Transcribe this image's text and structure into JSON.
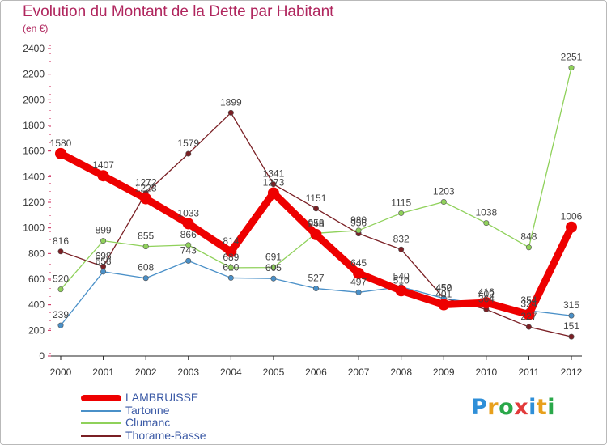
{
  "header": {
    "title": "Evolution du Montant de la Dette par Habitant",
    "subtitle": "(en €)"
  },
  "logo": {
    "text": "Proxiti",
    "letter_colors": [
      "#2f8fd8",
      "#e8a01c",
      "#2aa84a",
      "#e23a3a",
      "#2f8fd8",
      "#e8a01c",
      "#2aa84a"
    ]
  },
  "chart_data": {
    "type": "line",
    "x": [
      "2000",
      "2001",
      "2002",
      "2003",
      "2004",
      "2005",
      "2006",
      "2007",
      "2008",
      "2009",
      "2010",
      "2011",
      "2012"
    ],
    "ylim": [
      0,
      2400
    ],
    "yticks": [
      "0",
      "200",
      "400",
      "600",
      "800",
      "1000",
      "1200",
      "1400",
      "1600",
      "1800",
      "2000",
      "2200",
      "2400"
    ],
    "grid": false,
    "legend_position": "bottom-left",
    "series": [
      {
        "name": "LAMBRUISSE",
        "color": "#ee0000",
        "values": [
          1580,
          1407,
          1228,
          1033,
          814,
          1273,
          948,
          645,
          510,
          401,
          416,
          324,
          1006
        ],
        "labels": [
          "1580",
          "1407",
          "1228",
          "1033",
          "814",
          "1273",
          "948",
          "645",
          "510",
          "401",
          "416",
          "324",
          "1006"
        ]
      },
      {
        "name": "Tartonne",
        "color": "#4a90c8",
        "values": [
          239,
          658,
          608,
          743,
          610,
          605,
          527,
          497,
          540,
          450,
          402,
          354,
          315
        ],
        "labels": [
          "239",
          "658",
          "608",
          "743",
          "610",
          "605",
          "527",
          "497",
          "540",
          "450",
          "402",
          "354",
          "315"
        ]
      },
      {
        "name": "Clumanc",
        "color": "#8fd15a",
        "values": [
          520,
          899,
          855,
          866,
          689,
          691,
          958,
          980,
          1115,
          1203,
          1038,
          848,
          2251
        ],
        "labels": [
          "520",
          "899",
          "855",
          "866",
          "689",
          "691",
          "958",
          "980",
          "1115",
          "1203",
          "1038",
          "848",
          "2251"
        ]
      },
      {
        "name": "Thorame-Basse",
        "color": "#7a1f24",
        "values": [
          816,
          698,
          1272,
          1579,
          1899,
          1341,
          1151,
          956,
          832,
          452,
          364,
          227,
          151
        ],
        "labels": [
          "816",
          "698",
          "1272",
          "1579",
          "1899",
          "1341",
          "1151",
          "956",
          "832",
          "452",
          "364",
          "227",
          "151"
        ]
      }
    ]
  }
}
